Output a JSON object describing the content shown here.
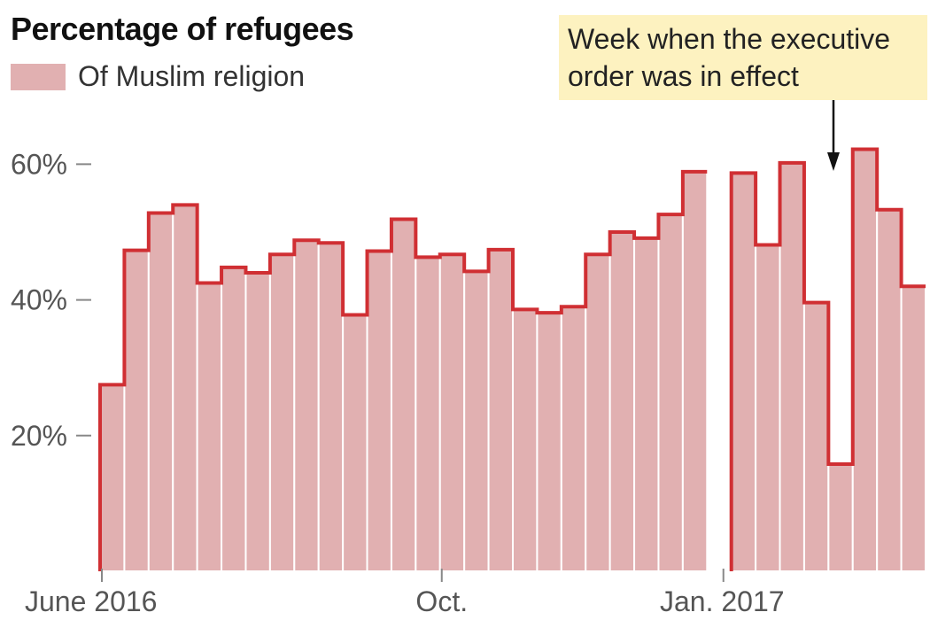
{
  "chart_data": {
    "type": "bar",
    "title": "Percentage of refugees",
    "legend": [
      {
        "name": "Of Muslim religion",
        "color": "#e1b0b1"
      }
    ],
    "series": [
      {
        "name": "Of Muslim religion",
        "values": [
          27.5,
          47.3,
          52.8,
          54.0,
          42.5,
          44.8,
          44.0,
          46.7,
          48.8,
          48.4,
          37.8,
          47.2,
          51.9,
          46.3,
          46.7,
          44.2,
          47.4,
          38.6,
          38.1,
          39.0,
          46.7,
          50.0,
          49.1,
          52.6,
          58.9,
          null,
          58.7,
          48.1,
          60.2,
          39.6,
          15.8,
          62.2,
          53.3,
          42.0
        ]
      }
    ],
    "x_ticks": [
      "June 2016",
      "Oct.",
      "Jan. 2017"
    ],
    "y_ticks": [
      "60%",
      "40%",
      "20%"
    ],
    "ylim": [
      0,
      70
    ],
    "grid": false,
    "annotation": {
      "lines": [
        "Week when the executive",
        "order was in effect"
      ]
    },
    "colors": {
      "bar_fill": "#e1b0b1",
      "outline": "#d02f33",
      "annotation_bg": "#fdf2c0"
    }
  }
}
